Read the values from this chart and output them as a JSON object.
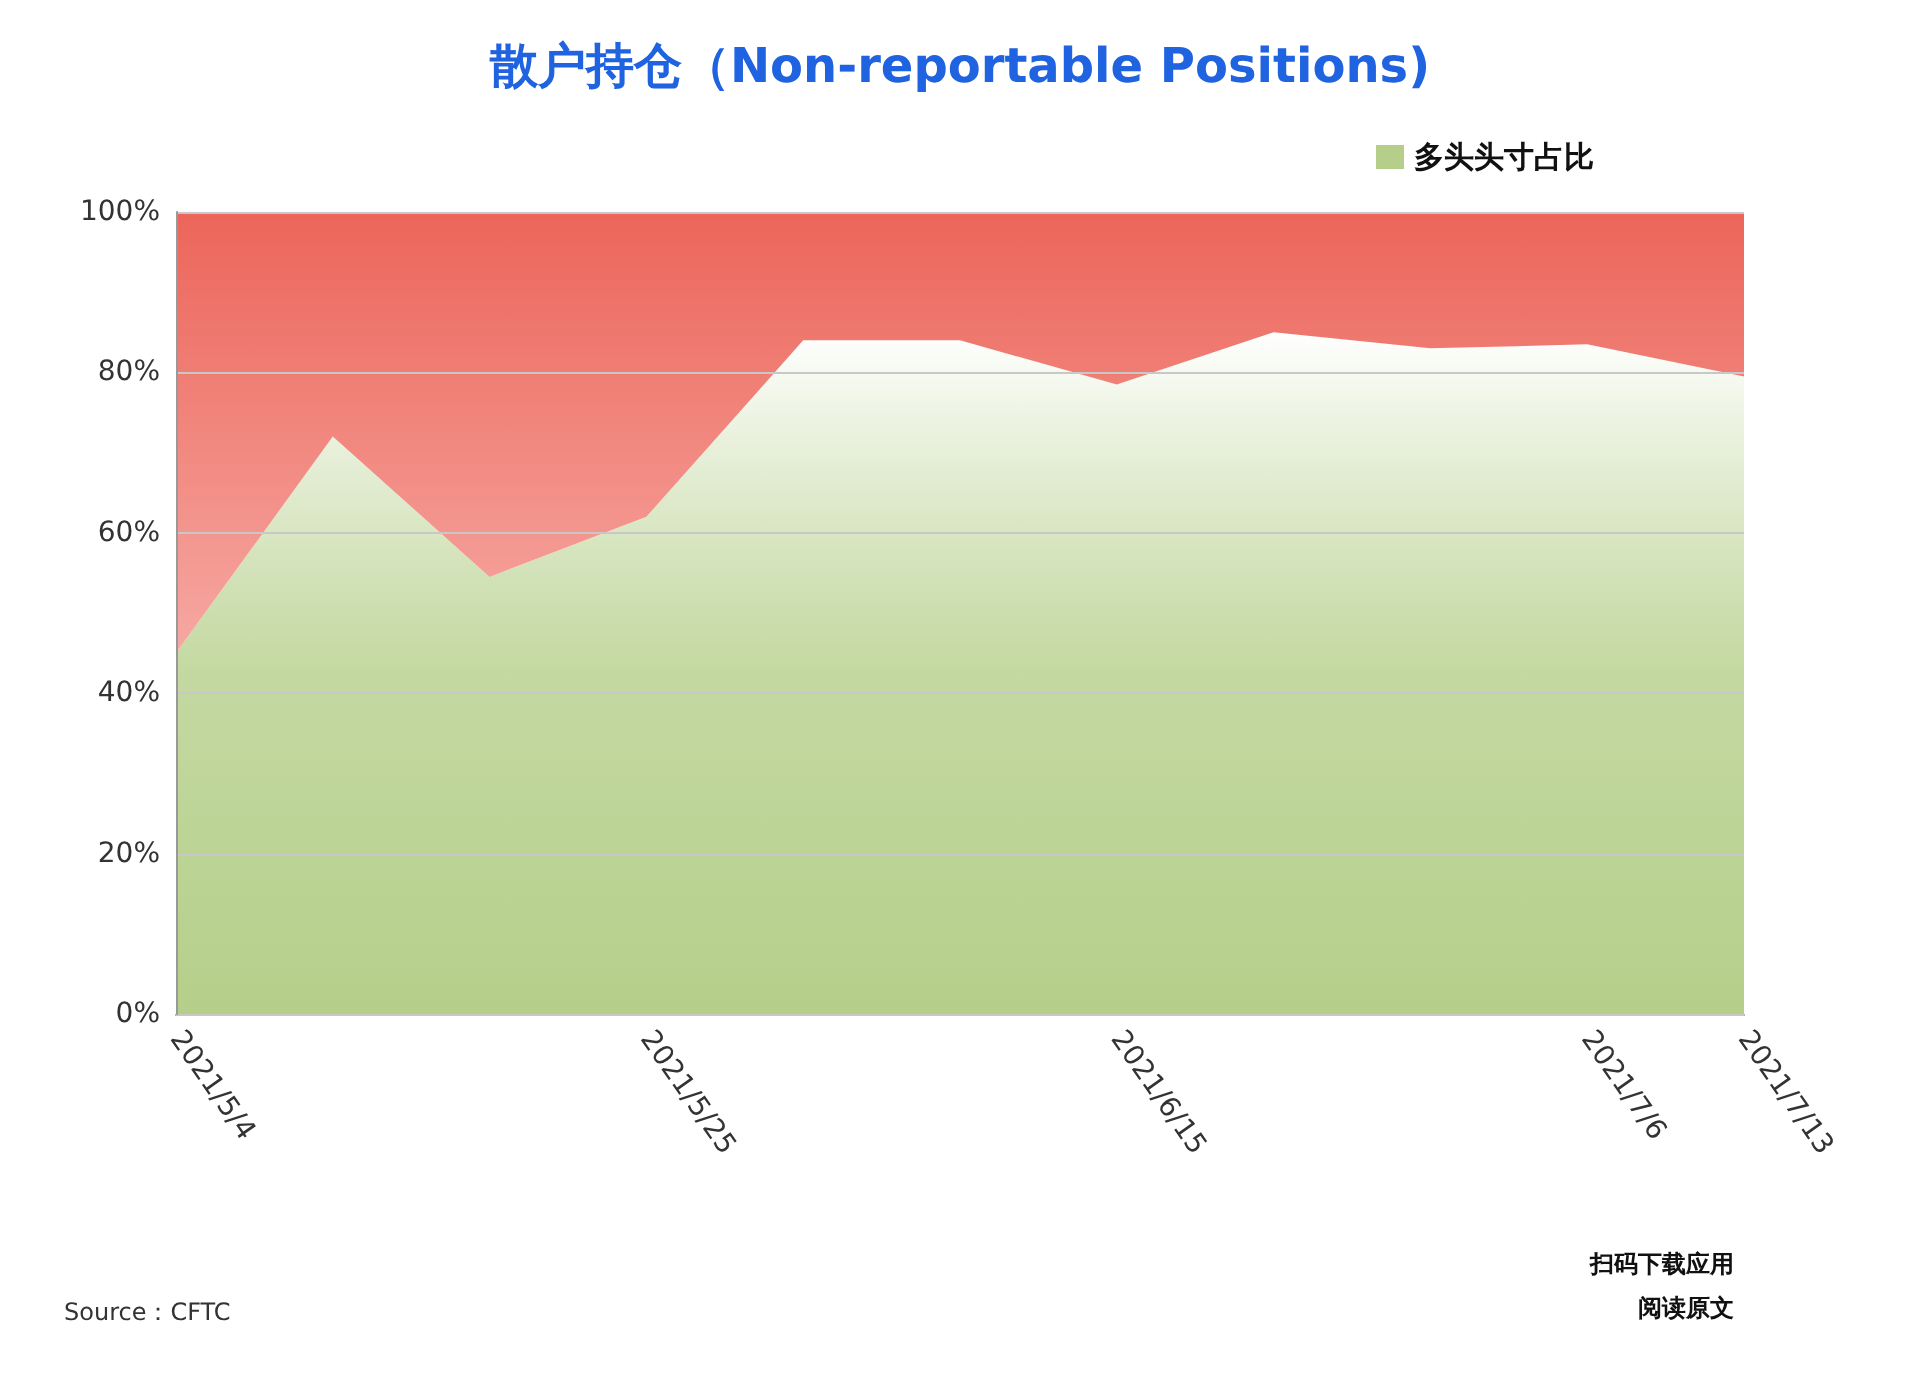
{
  "chart_data": {
    "type": "area",
    "title": "散户持仓（Non-reportable Positions)",
    "categories": [
      "2021/5/4",
      null,
      null,
      "2021/5/25",
      null,
      null,
      "2021/6/15",
      null,
      null,
      "2021/7/6",
      "2021/7/13"
    ],
    "stacked": true,
    "series": [
      {
        "name": "多头头寸占比",
        "color": "#b5cf8a",
        "values": [
          45,
          72,
          54.5,
          62,
          84,
          84,
          78.5,
          85,
          83,
          83.5,
          79.5
        ]
      },
      {
        "color": "#ec655a",
        "values": [
          55,
          28,
          45.5,
          38,
          16,
          16,
          21.5,
          15,
          17,
          16.5,
          20.5
        ]
      }
    ],
    "ylim": [
      0,
      100
    ],
    "yticks": [
      {
        "value": 0,
        "label": "0%"
      },
      {
        "value": 20,
        "label": "20%"
      },
      {
        "value": 40,
        "label": "40%"
      },
      {
        "value": 60,
        "label": "60%"
      },
      {
        "value": 80,
        "label": "80%"
      },
      {
        "value": 100,
        "label": "100%"
      }
    ],
    "grid": "y",
    "legend": "top right",
    "marker": "none",
    "annotations": [
      "Source：CFTC",
      "扫码下载应用",
      "阅读原文"
    ]
  }
}
